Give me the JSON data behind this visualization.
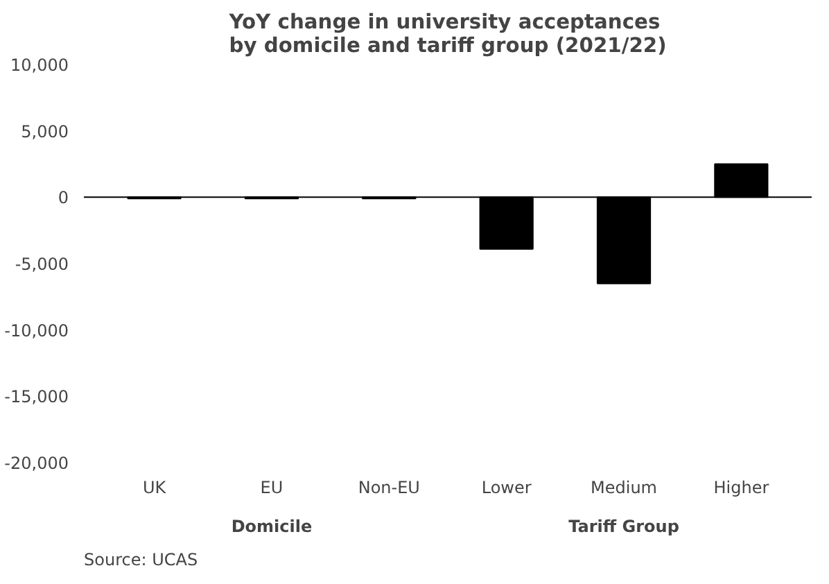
{
  "chart_data": {
    "type": "bar",
    "title": "YoY change in university acceptances\nby domicile and tariff group (2021/22)",
    "categories": [
      "UK",
      "EU",
      "Non-EU",
      "Lower",
      "Medium",
      "Higher"
    ],
    "values": [
      -100,
      -100,
      -100,
      -3900,
      -6500,
      2500
    ],
    "color": "#000000",
    "ylim": [
      -20000,
      10000
    ],
    "yticks": [
      {
        "value": -20000,
        "label": "-20,000"
      },
      {
        "value": -15000,
        "label": "-15,000"
      },
      {
        "value": -10000,
        "label": "-10,000"
      },
      {
        "value": -5000,
        "label": "-5,000"
      },
      0,
      {
        "value": 5000,
        "label": "5,000"
      },
      {
        "value": 10000,
        "label": "10,000"
      }
    ],
    "grid": false,
    "ref_lines": [
      {
        "axis": "y",
        "value": 0,
        "color": "#000000"
      }
    ],
    "annotations": [
      "Domicile",
      "Tariff Group",
      "Source: UCAS"
    ]
  }
}
